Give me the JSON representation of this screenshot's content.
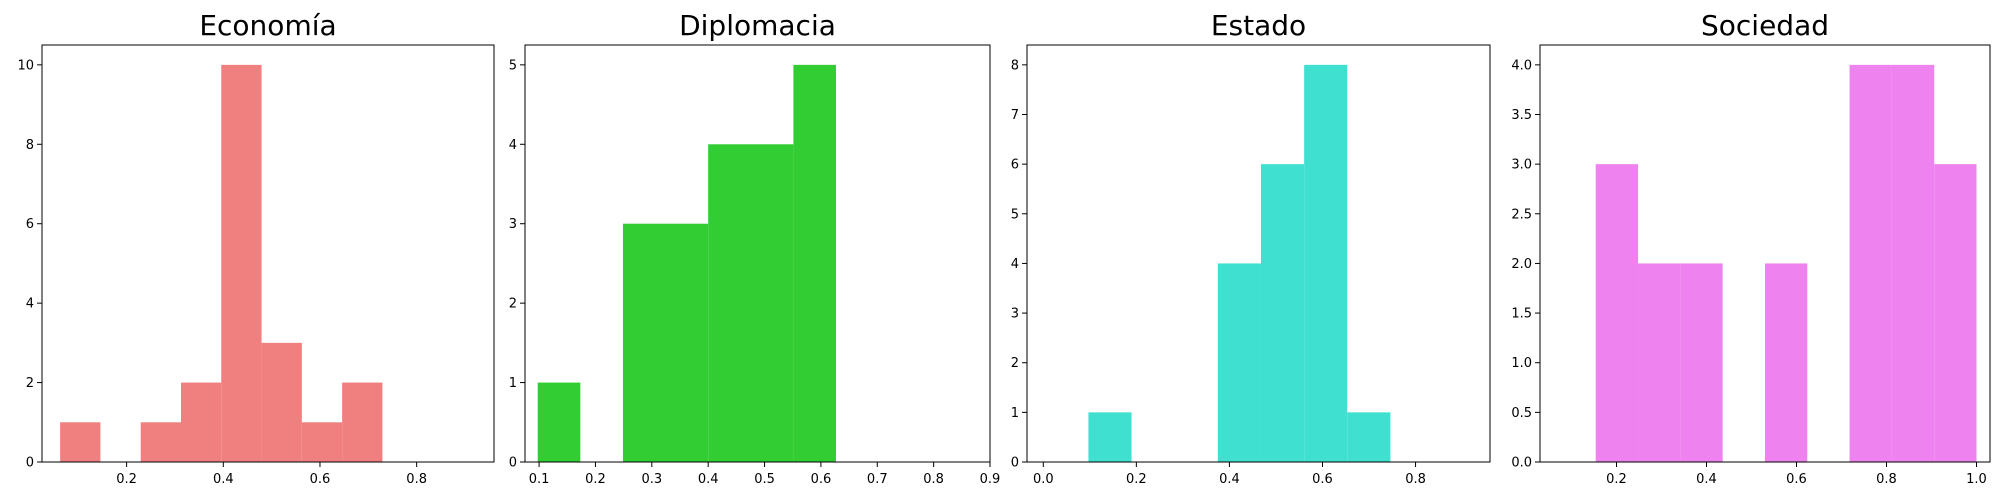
{
  "figure": {
    "background": "#ffffff"
  },
  "chart_data": [
    {
      "type": "bar",
      "title": "Economía",
      "color": "#F08080",
      "bin_edges": [
        0.0625,
        0.1042,
        0.1458,
        0.1875,
        0.2292,
        0.2708,
        0.3125,
        0.3542,
        0.3958,
        0.4375,
        0.4792,
        0.5208,
        0.5625,
        0.6042,
        0.6458,
        0.6875,
        0.7292,
        0.7708
      ],
      "bins": [
        {
          "x0": 0.0625,
          "x1": 0.1458,
          "value": 1
        },
        {
          "x0": 0.2292,
          "x1": 0.3125,
          "value": 1
        },
        {
          "x0": 0.3125,
          "x1": 0.3958,
          "value": 2
        },
        {
          "x0": 0.3958,
          "x1": 0.4792,
          "value": 10
        },
        {
          "x0": 0.4792,
          "x1": 0.5625,
          "value": 3
        },
        {
          "x0": 0.5625,
          "x1": 0.6458,
          "value": 1
        },
        {
          "x0": 0.6458,
          "x1": 0.7292,
          "value": 2
        }
      ],
      "xlim": [
        0.025,
        0.96
      ],
      "ylim": [
        0,
        10.5
      ],
      "xticks": [
        0.2,
        0.4,
        0.6,
        0.8
      ],
      "xtick_labels": [
        "0.2",
        "0.4",
        "0.6",
        "0.8"
      ],
      "yticks": [
        0,
        2,
        4,
        6,
        8,
        10
      ],
      "ytick_labels": [
        "0",
        "2",
        "4",
        "6",
        "8",
        "10"
      ],
      "xlabel": "",
      "ylabel": "",
      "grid": false
    },
    {
      "type": "bar",
      "title": "Diplomacia",
      "color": "#32CD32",
      "bins": [
        {
          "x0": 0.0976,
          "x1": 0.1732,
          "value": 1
        },
        {
          "x0": 0.2488,
          "x1": 0.4,
          "value": 3
        },
        {
          "x0": 0.4,
          "x1": 0.5512,
          "value": 4
        },
        {
          "x0": 0.5512,
          "x1": 0.6268,
          "value": 5
        }
      ],
      "xlim": [
        0.075,
        0.9
      ],
      "ylim": [
        0,
        5.25
      ],
      "xticks": [
        0.1,
        0.2,
        0.3,
        0.4,
        0.5,
        0.6,
        0.7,
        0.8,
        0.9
      ],
      "xtick_labels": [
        "0.1",
        "0.2",
        "0.3",
        "0.4",
        "0.5",
        "0.6",
        "0.7",
        "0.8",
        "0.9"
      ],
      "yticks": [
        0,
        1,
        2,
        3,
        4,
        5
      ],
      "ytick_labels": [
        "0",
        "1",
        "2",
        "3",
        "4",
        "5"
      ],
      "xlabel": "",
      "ylabel": "",
      "grid": false
    },
    {
      "type": "bar",
      "title": "Estado",
      "color": "#40E0D0",
      "bins": [
        {
          "x0": 0.097,
          "x1": 0.1897,
          "value": 1
        },
        {
          "x0": 0.3751,
          "x1": 0.4678,
          "value": 4
        },
        {
          "x0": 0.4678,
          "x1": 0.5606,
          "value": 6
        },
        {
          "x0": 0.5606,
          "x1": 0.6533,
          "value": 8
        },
        {
          "x0": 0.6533,
          "x1": 0.746,
          "value": 1
        }
      ],
      "xlim": [
        -0.035,
        0.96
      ],
      "ylim": [
        0,
        8.4
      ],
      "xticks": [
        0.0,
        0.2,
        0.4,
        0.6,
        0.8
      ],
      "xtick_labels": [
        "0.0",
        "0.2",
        "0.4",
        "0.6",
        "0.8"
      ],
      "yticks": [
        0,
        1,
        2,
        3,
        4,
        5,
        6,
        7,
        8
      ],
      "ytick_labels": [
        "0",
        "1",
        "2",
        "3",
        "4",
        "5",
        "6",
        "7",
        "8"
      ],
      "xlabel": "",
      "ylabel": "",
      "grid": false
    },
    {
      "type": "bar",
      "title": "Sociedad",
      "color": "#EE82EE",
      "bins": [
        {
          "x0": 0.1538,
          "x1": 0.2479,
          "value": 3
        },
        {
          "x0": 0.2479,
          "x1": 0.3419,
          "value": 2
        },
        {
          "x0": 0.3419,
          "x1": 0.4359,
          "value": 2
        },
        {
          "x0": 0.5299,
          "x1": 0.6239,
          "value": 2
        },
        {
          "x0": 0.7179,
          "x1": 0.812,
          "value": 4
        },
        {
          "x0": 0.812,
          "x1": 0.906,
          "value": 4
        },
        {
          "x0": 0.906,
          "x1": 1.0,
          "value": 3
        }
      ],
      "xlim": [
        0.03,
        1.03
      ],
      "ylim": [
        0,
        4.2
      ],
      "xticks": [
        0.2,
        0.4,
        0.6,
        0.8,
        1.0
      ],
      "xtick_labels": [
        "0.2",
        "0.4",
        "0.6",
        "0.8",
        "1.0"
      ],
      "yticks": [
        0.0,
        0.5,
        1.0,
        1.5,
        2.0,
        2.5,
        3.0,
        3.5,
        4.0
      ],
      "ytick_labels": [
        "0.0",
        "0.5",
        "1.0",
        "1.5",
        "2.0",
        "2.5",
        "3.0",
        "3.5",
        "4.0"
      ],
      "xlabel": "",
      "ylabel": "",
      "grid": false
    }
  ]
}
